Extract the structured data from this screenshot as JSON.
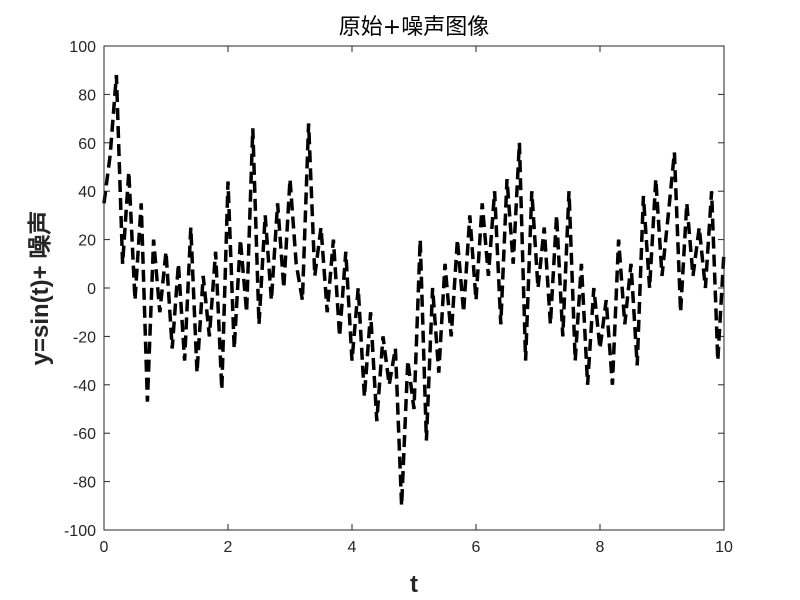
{
  "chart_data": {
    "type": "line",
    "title": "原始+噪声图像",
    "xlabel": "t",
    "ylabel": "y=sin(t)+ 噪声",
    "xlim": [
      0,
      10
    ],
    "ylim": [
      -100,
      100
    ],
    "xticks": [
      0,
      2,
      4,
      6,
      8,
      10
    ],
    "yticks": [
      -100,
      -80,
      -60,
      -40,
      -20,
      0,
      20,
      40,
      60,
      80,
      100
    ],
    "grid": false,
    "line_style": "dashed",
    "line_color": "#000000",
    "series": [
      {
        "x": [
          0.0,
          0.1,
          0.2,
          0.3,
          0.4,
          0.5,
          0.6,
          0.7,
          0.8,
          0.9,
          1.0,
          1.1,
          1.2,
          1.3,
          1.4,
          1.5,
          1.6,
          1.7,
          1.8,
          1.9,
          2.0,
          2.1,
          2.2,
          2.3,
          2.4,
          2.5,
          2.6,
          2.7,
          2.8,
          2.9,
          3.0,
          3.1,
          3.2,
          3.3,
          3.4,
          3.5,
          3.6,
          3.7,
          3.8,
          3.9,
          4.0,
          4.1,
          4.2,
          4.3,
          4.4,
          4.5,
          4.6,
          4.7,
          4.8,
          4.9,
          5.0,
          5.1,
          5.2,
          5.3,
          5.4,
          5.5,
          5.6,
          5.7,
          5.8,
          5.9,
          6.0,
          6.1,
          6.2,
          6.3,
          6.4,
          6.5,
          6.6,
          6.7,
          6.8,
          6.9,
          7.0,
          7.1,
          7.2,
          7.3,
          7.4,
          7.5,
          7.6,
          7.7,
          7.8,
          7.9,
          8.0,
          8.1,
          8.2,
          8.3,
          8.4,
          8.5,
          8.6,
          8.7,
          8.8,
          8.9,
          9.0,
          9.1,
          9.2,
          9.3,
          9.4,
          9.5,
          9.6,
          9.7,
          9.8,
          9.9,
          10.0
        ],
        "y": [
          35,
          55,
          88,
          10,
          48,
          -5,
          35,
          -47,
          20,
          -10,
          15,
          -25,
          10,
          -30,
          25,
          -35,
          5,
          -20,
          15,
          -42,
          44,
          -25,
          20,
          -10,
          66,
          -15,
          30,
          -5,
          35,
          0,
          45,
          10,
          -5,
          68,
          5,
          25,
          -10,
          20,
          -20,
          15,
          -30,
          0,
          -45,
          -10,
          -55,
          -20,
          -40,
          -25,
          -90,
          -30,
          -50,
          20,
          -63,
          0,
          -35,
          10,
          -20,
          20,
          -10,
          30,
          -5,
          35,
          5,
          40,
          -15,
          45,
          10,
          60,
          -30,
          40,
          0,
          25,
          -15,
          30,
          -20,
          40,
          -30,
          10,
          -40,
          0,
          -25,
          -5,
          -40,
          20,
          -15,
          10,
          -32,
          38,
          0,
          45,
          5,
          30,
          56,
          -10,
          35,
          5,
          25,
          0,
          40,
          -30,
          15
        ]
      }
    ]
  }
}
